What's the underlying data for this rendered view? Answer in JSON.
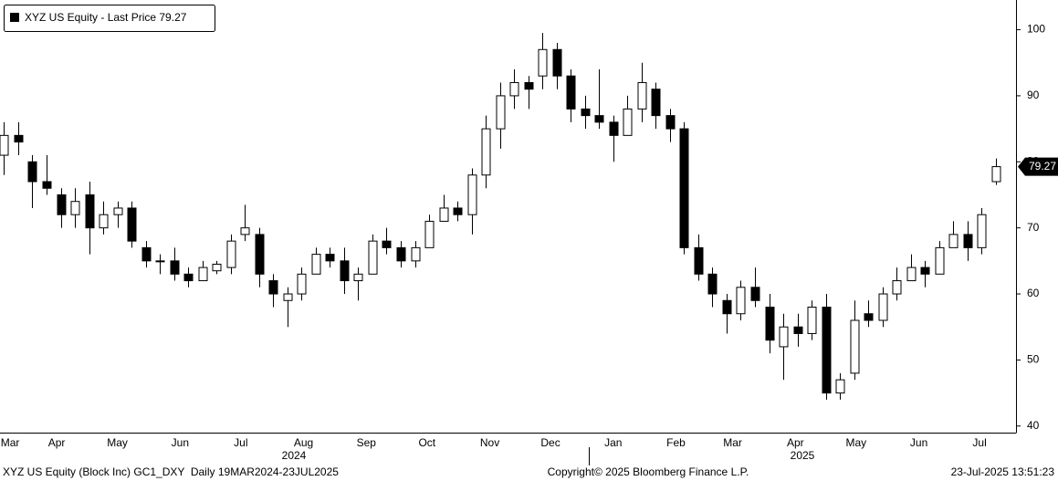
{
  "chart_data": {
    "type": "candlestick",
    "legend": "XYZ US Equity - Last Price 79.27",
    "color": "#000000",
    "x": [
      "2024-03-20",
      "2024-03-27",
      "2024-04-03",
      "2024-04-10",
      "2024-04-17",
      "2024-04-24",
      "2024-05-01",
      "2024-05-08",
      "2024-05-15",
      "2024-05-22",
      "2024-05-29",
      "2024-06-05",
      "2024-06-12",
      "2024-06-19",
      "2024-06-26",
      "2024-07-03",
      "2024-07-10",
      "2024-07-17",
      "2024-07-24",
      "2024-07-31",
      "2024-08-07",
      "2024-08-14",
      "2024-08-21",
      "2024-08-28",
      "2024-09-04",
      "2024-09-11",
      "2024-09-18",
      "2024-09-25",
      "2024-10-02",
      "2024-10-09",
      "2024-10-16",
      "2024-10-23",
      "2024-10-30",
      "2024-11-06",
      "2024-11-13",
      "2024-11-20",
      "2024-11-27",
      "2024-12-04",
      "2024-12-11",
      "2024-12-18",
      "2024-12-25",
      "2025-01-01",
      "2025-01-08",
      "2025-01-15",
      "2025-01-22",
      "2025-01-29",
      "2025-02-05",
      "2025-02-12",
      "2025-02-19",
      "2025-02-26",
      "2025-03-05",
      "2025-03-12",
      "2025-03-19",
      "2025-03-26",
      "2025-04-02",
      "2025-04-09",
      "2025-04-16",
      "2025-04-23",
      "2025-04-30",
      "2025-05-07",
      "2025-05-14",
      "2025-05-21",
      "2025-05-28",
      "2025-06-04",
      "2025-06-11",
      "2025-06-18",
      "2025-06-25",
      "2025-07-02",
      "2025-07-09",
      "2025-07-16",
      "2025-07-23"
    ],
    "open": [
      81,
      84,
      80,
      77,
      75,
      72,
      75,
      70,
      72,
      73,
      67,
      65,
      65,
      63,
      62,
      63.5,
      64,
      69,
      69,
      62,
      59,
      60,
      63,
      66,
      65,
      62,
      63,
      68,
      67,
      65,
      67,
      71,
      73,
      72,
      78,
      85,
      90,
      92,
      93,
      97,
      93,
      88,
      87,
      86,
      84,
      88,
      91,
      87,
      85,
      67,
      63,
      59,
      57,
      61,
      58,
      52,
      55,
      54,
      58,
      45,
      48,
      57,
      56,
      60,
      62,
      64,
      63,
      67,
      69,
      67,
      77
    ],
    "high": [
      86,
      86,
      81,
      81,
      76,
      76,
      77,
      74,
      74,
      74,
      68,
      66,
      67,
      64,
      65,
      65,
      69,
      73.5,
      70,
      63,
      61,
      64,
      67,
      67,
      67,
      64,
      69,
      70,
      68,
      68,
      72,
      75,
      74,
      79,
      87,
      92,
      94,
      93,
      99.5,
      98,
      94,
      90,
      94,
      87,
      90,
      95,
      92,
      88,
      86,
      69,
      64,
      60,
      62,
      64,
      60,
      57,
      57,
      59,
      60,
      48,
      59,
      59,
      61,
      64,
      66,
      65,
      68,
      71,
      71,
      73,
      80.5
    ],
    "low": [
      78,
      81,
      73,
      75,
      70,
      70,
      66,
      69,
      70,
      67,
      64,
      63,
      62,
      61,
      62,
      63,
      63,
      68,
      61,
      58,
      55,
      59,
      63,
      64,
      60,
      59,
      63,
      66,
      64,
      64,
      67,
      71,
      71,
      69,
      76,
      82,
      88,
      88,
      91,
      91,
      86,
      85,
      85,
      80,
      84,
      86,
      85,
      83,
      66,
      62,
      58,
      54,
      56,
      58,
      51,
      47,
      52,
      53,
      44,
      44,
      47,
      55,
      55,
      59,
      62,
      61,
      63,
      67,
      65,
      66,
      76.5
    ],
    "close": [
      84,
      83,
      77,
      76,
      72,
      74,
      70,
      72,
      73,
      68,
      65,
      65,
      63,
      62,
      64,
      64.5,
      68,
      70,
      63,
      60,
      60,
      63,
      66,
      65,
      62,
      63,
      68,
      67,
      65,
      67,
      71,
      73,
      72,
      78,
      85,
      90,
      92,
      91,
      97,
      93,
      88,
      87,
      86,
      84,
      88,
      92,
      87,
      85,
      67,
      63,
      60,
      57,
      61,
      59,
      53,
      55,
      54,
      58,
      45,
      47,
      56,
      56,
      60,
      62,
      64,
      63,
      67,
      69,
      67,
      72,
      79.27
    ],
    "xlim": [
      "2024-03-18",
      "2025-08-02"
    ],
    "xticks": [
      {
        "value": "2024-03-23",
        "label": "Mar"
      },
      {
        "value": "2024-04-15",
        "label": "Apr"
      },
      {
        "value": "2024-05-15",
        "label": "May"
      },
      {
        "value": "2024-06-15",
        "label": "Jun"
      },
      {
        "value": "2024-07-15",
        "label": "Jul"
      },
      {
        "value": "2024-08-15",
        "label": "Aug"
      },
      {
        "value": "2024-09-15",
        "label": "Sep"
      },
      {
        "value": "2024-10-15",
        "label": "Oct"
      },
      {
        "value": "2024-11-15",
        "label": "Nov"
      },
      {
        "value": "2024-12-15",
        "label": "Dec"
      },
      {
        "value": "2025-01-15",
        "label": "Jan"
      },
      {
        "value": "2025-02-15",
        "label": "Feb"
      },
      {
        "value": "2025-03-15",
        "label": "Mar"
      },
      {
        "value": "2025-04-15",
        "label": "Apr"
      },
      {
        "value": "2025-05-15",
        "label": "May"
      },
      {
        "value": "2025-06-15",
        "label": "Jun"
      },
      {
        "value": "2025-07-15",
        "label": "Jul"
      }
    ],
    "x_years": [
      "2024",
      "2025"
    ],
    "ylim": [
      39,
      104.5
    ],
    "yticks": [
      40,
      50,
      60,
      70,
      80,
      90,
      100
    ],
    "grid": false
  },
  "footer": {
    "left": "XYZ US Equity (Block Inc) GC1_DXY  Daily 19MAR2024-23JUL2025",
    "center": "Copyright© 2025 Bloomberg Finance L.P.",
    "right": "23-Jul-2025 13:51:23"
  }
}
